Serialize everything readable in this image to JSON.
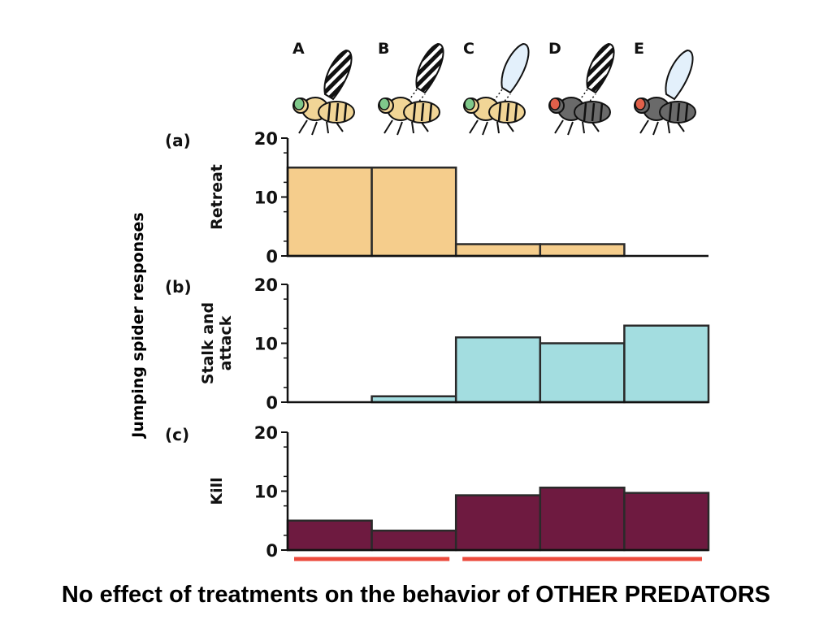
{
  "caption": "No effect of treatments on the behavior of OTHER PREDATORS",
  "flies": [
    {
      "label": "A",
      "body_color": "#f1d596",
      "eye_color": "#7fc88a",
      "wing": "banded"
    },
    {
      "label": "B",
      "body_color": "#f1d596",
      "eye_color": "#7fc88a",
      "wing": "banded-detached"
    },
    {
      "label": "C",
      "body_color": "#f1d596",
      "eye_color": "#7fc88a",
      "wing": "clear-detached"
    },
    {
      "label": "D",
      "body_color": "#6a6a6a",
      "eye_color": "#e0604a",
      "wing": "banded-detached"
    },
    {
      "label": "E",
      "body_color": "#6a6a6a",
      "eye_color": "#e0604a",
      "wing": "clear"
    }
  ],
  "chart_data": {
    "type": "bar",
    "ylabel": "Jumping spider responses",
    "categories": [
      "A",
      "B",
      "C",
      "D",
      "E"
    ],
    "ylim": [
      0,
      20
    ],
    "yticks": [
      0,
      10,
      20
    ],
    "panels": [
      {
        "tag": "(a)",
        "name": "Retreat",
        "name_lines": [
          "Retreat"
        ],
        "color": "#f5cd8c",
        "values": [
          15,
          15,
          2,
          2,
          0
        ]
      },
      {
        "tag": "(b)",
        "name": "Stalk and attack",
        "name_lines": [
          "Stalk and",
          "attack"
        ],
        "color": "#a3dde0",
        "values": [
          0,
          1,
          11,
          10,
          13
        ]
      },
      {
        "tag": "(c)",
        "name": "Kill",
        "name_lines": [
          "Kill"
        ],
        "color": "#6e1a40",
        "values": [
          5,
          3.3,
          9.3,
          10.6,
          9.7
        ]
      }
    ],
    "groupings": [
      {
        "from": 0,
        "to": 1,
        "color": "#ec4a3c"
      },
      {
        "from": 2,
        "to": 4,
        "color": "#ec4a3c"
      }
    ]
  }
}
